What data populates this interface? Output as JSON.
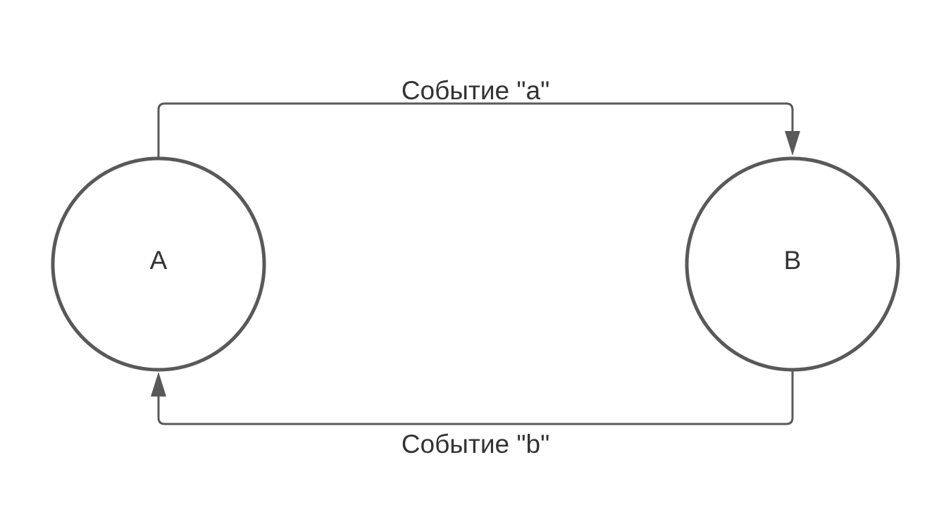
{
  "diagram": {
    "states": [
      {
        "id": "A",
        "label": "A"
      },
      {
        "id": "B",
        "label": "B"
      }
    ],
    "transitions": [
      {
        "from": "A",
        "to": "B",
        "label": "Событие \"a\""
      },
      {
        "from": "B",
        "to": "A",
        "label": "Событие \"b\""
      }
    ]
  },
  "colors": {
    "stroke": "#595959",
    "text": "#333333",
    "background": "#ffffff"
  }
}
